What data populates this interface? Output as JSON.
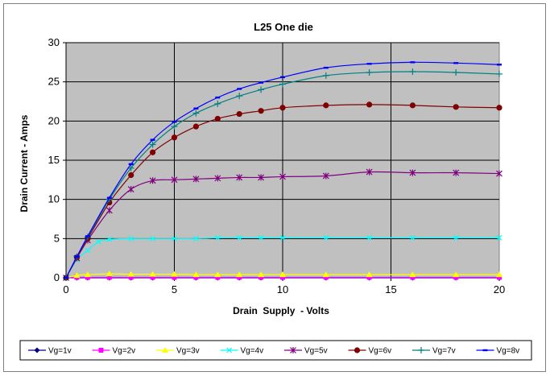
{
  "chart_data": {
    "type": "line",
    "title": "L25 One die",
    "xlabel": "Drain  Supply  - Volts",
    "ylabel": "Drain Current - Amps",
    "xlim": [
      0,
      20
    ],
    "ylim": [
      0,
      30
    ],
    "xticks": [
      0,
      5,
      10,
      15,
      20
    ],
    "yticks": [
      0,
      5,
      10,
      15,
      20,
      25,
      30
    ],
    "grid": "major gridlines, black",
    "plot_background": "#c0c0c0",
    "legend_position": "bottom",
    "series": [
      {
        "name": "Vg=1v",
        "color": "#000080",
        "marker": "diamond",
        "x": [
          0,
          0.5,
          1,
          2,
          3,
          4,
          5,
          6,
          7,
          8,
          9,
          10,
          12,
          14,
          16,
          18,
          20
        ],
        "y": [
          0,
          0,
          0,
          0,
          0,
          0,
          0,
          0,
          0,
          0,
          0,
          0,
          0,
          0,
          0,
          0,
          0
        ]
      },
      {
        "name": "Vg=2v",
        "color": "#ff00ff",
        "marker": "square",
        "x": [
          0,
          0.5,
          1,
          2,
          3,
          4,
          5,
          6,
          7,
          8,
          9,
          10,
          12,
          14,
          16,
          18,
          20
        ],
        "y": [
          0,
          0.05,
          0.05,
          0.05,
          0.05,
          0.05,
          0.05,
          0.05,
          0.05,
          0.05,
          0.05,
          0.05,
          0.05,
          0.05,
          0.05,
          0.05,
          0.05
        ]
      },
      {
        "name": "Vg=3v",
        "color": "#ffff00",
        "marker": "triangle",
        "x": [
          0,
          0.5,
          1,
          2,
          3,
          4,
          5,
          6,
          7,
          8,
          9,
          10,
          12,
          14,
          16,
          18,
          20
        ],
        "y": [
          0,
          0.3,
          0.4,
          0.5,
          0.45,
          0.45,
          0.45,
          0.4,
          0.4,
          0.4,
          0.4,
          0.4,
          0.4,
          0.4,
          0.4,
          0.4,
          0.4
        ]
      },
      {
        "name": "Vg=4v",
        "color": "#00ffff",
        "marker": "x",
        "x": [
          0,
          0.5,
          1,
          1.5,
          2,
          3,
          4,
          5,
          6,
          7,
          8,
          9,
          10,
          12,
          14,
          16,
          18,
          20
        ],
        "y": [
          0,
          2.3,
          3.5,
          4.6,
          4.9,
          5.0,
          5.0,
          5.0,
          5.0,
          5.1,
          5.1,
          5.1,
          5.1,
          5.1,
          5.1,
          5.1,
          5.1,
          5.1
        ]
      },
      {
        "name": "Vg=5v",
        "color": "#800080",
        "marker": "star",
        "x": [
          0,
          0.5,
          1,
          2,
          3,
          4,
          5,
          6,
          7,
          8,
          9,
          10,
          12,
          14,
          16,
          18,
          20
        ],
        "y": [
          0,
          2.5,
          4.8,
          8.6,
          11.3,
          12.4,
          12.5,
          12.6,
          12.7,
          12.8,
          12.8,
          12.9,
          13.0,
          13.5,
          13.4,
          13.4,
          13.3
        ]
      },
      {
        "name": "Vg=6v",
        "color": "#800000",
        "marker": "circle",
        "x": [
          0,
          0.5,
          1,
          2,
          3,
          4,
          5,
          6,
          7,
          8,
          9,
          10,
          12,
          14,
          16,
          18,
          20
        ],
        "y": [
          0,
          2.6,
          5.0,
          9.6,
          13.1,
          16.0,
          17.9,
          19.3,
          20.3,
          20.9,
          21.3,
          21.7,
          22.0,
          22.1,
          22.0,
          21.8,
          21.7
        ]
      },
      {
        "name": "Vg=7v",
        "color": "#008080",
        "marker": "plus",
        "x": [
          0,
          0.5,
          1,
          2,
          3,
          4,
          5,
          6,
          7,
          8,
          9,
          10,
          12,
          14,
          16,
          18,
          20
        ],
        "y": [
          0,
          2.7,
          5.2,
          10.0,
          14.0,
          17.0,
          19.3,
          21.0,
          22.2,
          23.2,
          24.0,
          24.7,
          25.8,
          26.2,
          26.3,
          26.2,
          26.0
        ]
      },
      {
        "name": "Vg=8v",
        "color": "#0000ff",
        "marker": "dash",
        "x": [
          0,
          0.5,
          1,
          2,
          3,
          4,
          5,
          6,
          7,
          8,
          9,
          10,
          12,
          14,
          16,
          18,
          20
        ],
        "y": [
          0,
          2.7,
          5.3,
          10.2,
          14.5,
          17.6,
          19.9,
          21.6,
          23.0,
          24.1,
          24.9,
          25.6,
          26.8,
          27.3,
          27.5,
          27.4,
          27.2
        ]
      }
    ]
  }
}
